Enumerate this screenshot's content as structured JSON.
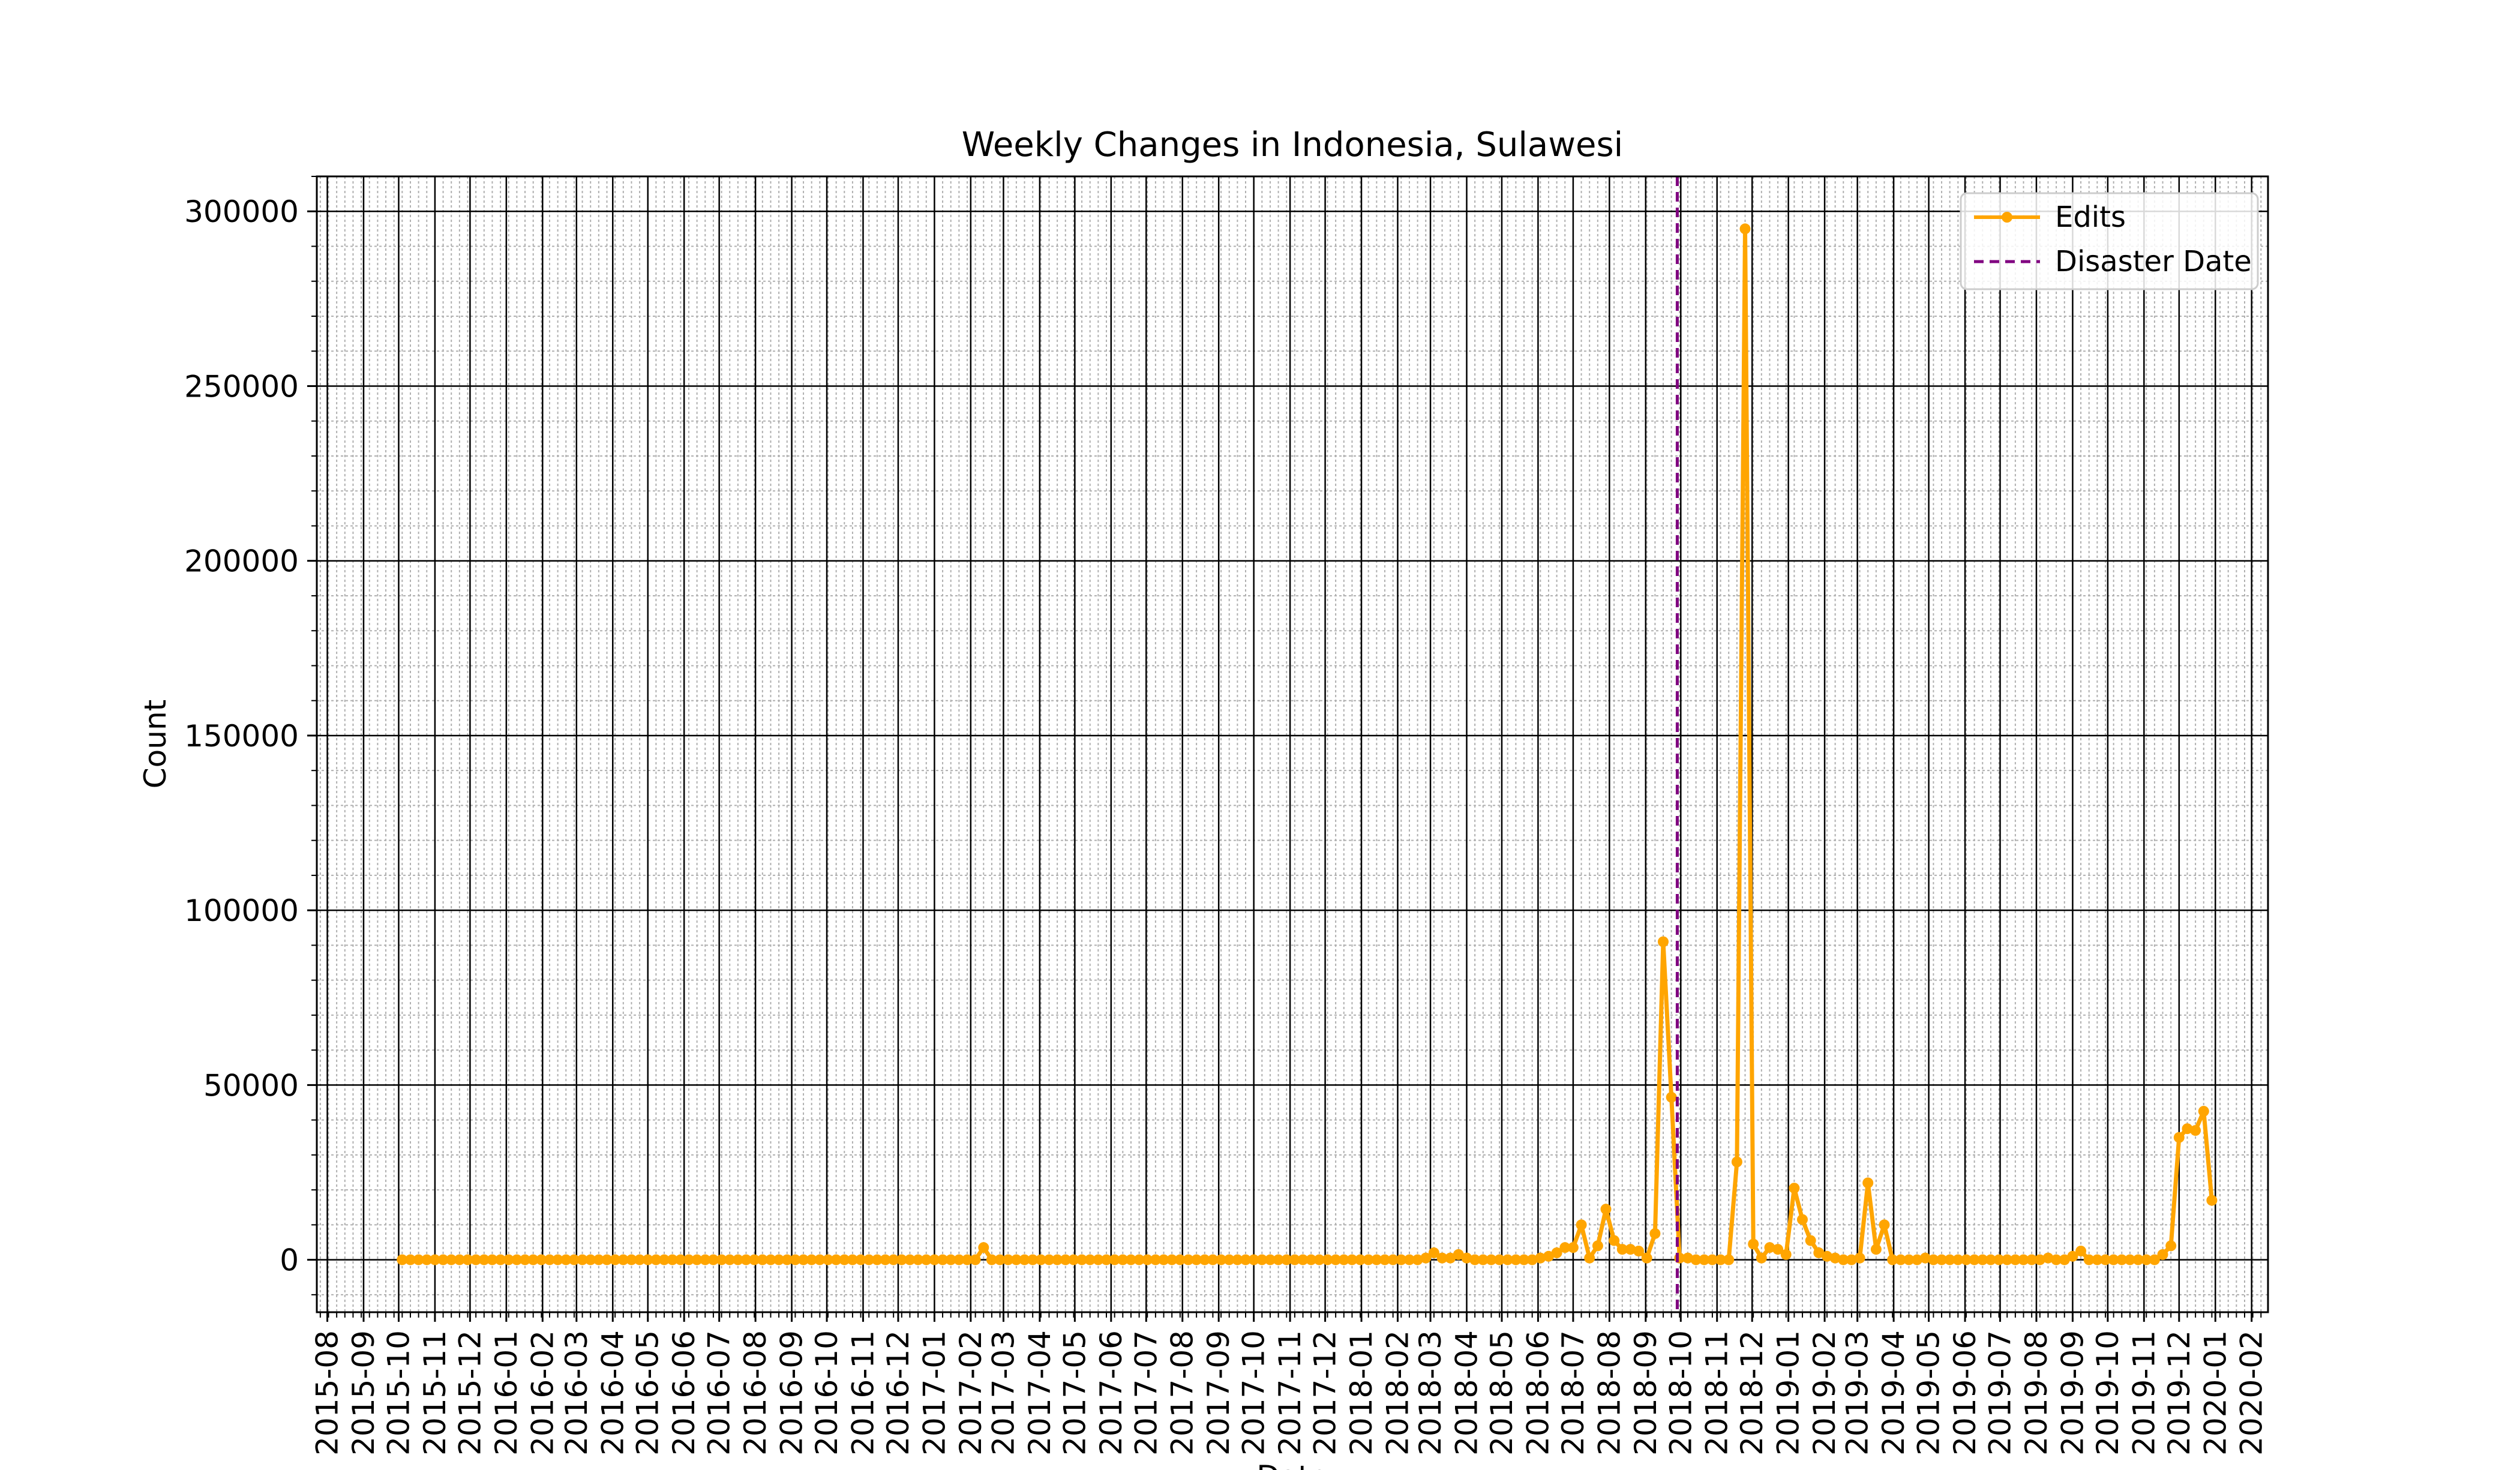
{
  "chart_data": {
    "type": "line",
    "title": "Weekly Changes in Indonesia, Sulawesi",
    "xlabel": "Date",
    "ylabel": "Count",
    "xlim": [
      "2015-07-23",
      "2020-02-15"
    ],
    "ylim": [
      -15000,
      310000
    ],
    "x_tick_labels": [
      "2015-08",
      "2015-09",
      "2015-10",
      "2015-11",
      "2015-12",
      "2016-01",
      "2016-02",
      "2016-03",
      "2016-04",
      "2016-05",
      "2016-06",
      "2016-07",
      "2016-08",
      "2016-09",
      "2016-10",
      "2016-11",
      "2016-12",
      "2017-01",
      "2017-02",
      "2017-03",
      "2017-04",
      "2017-05",
      "2017-06",
      "2017-07",
      "2017-08",
      "2017-09",
      "2017-10",
      "2017-11",
      "2017-12",
      "2018-01",
      "2018-02",
      "2018-03",
      "2018-04",
      "2018-05",
      "2018-06",
      "2018-07",
      "2018-08",
      "2018-09",
      "2018-10",
      "2018-11",
      "2018-12",
      "2019-01",
      "2019-02",
      "2019-03",
      "2019-04",
      "2019-05",
      "2019-06",
      "2019-07",
      "2019-08",
      "2019-09",
      "2019-10",
      "2019-11",
      "2019-12",
      "2020-01",
      "2020-02"
    ],
    "y_ticks": [
      0,
      50000,
      100000,
      150000,
      200000,
      250000,
      300000
    ],
    "y_tick_labels": [
      "0",
      "50000",
      "100000",
      "150000",
      "200000",
      "250000",
      "300000"
    ],
    "grid": {
      "major": true,
      "minor": true
    },
    "legend_position": "top-right",
    "legend": [
      "Edits",
      "Disaster Date"
    ],
    "disaster_date": "2018-09-28",
    "colors": {
      "edits": "#ffa500",
      "disaster": "#800080",
      "grid_major": "#000000",
      "grid_minor": "#b0b0b0"
    },
    "series": [
      {
        "name": "Edits",
        "color": "#ffa500",
        "segments": [
          {
            "start": "2015-10-04",
            "step_days": 7,
            "values": [
              0,
              0,
              0,
              0,
              0,
              0,
              0,
              0,
              0,
              0,
              0,
              0,
              0,
              0,
              0,
              0,
              0,
              0,
              0,
              0,
              0,
              0,
              0,
              0,
              0,
              0,
              0,
              0,
              0,
              0,
              0,
              0,
              0,
              0,
              0,
              0,
              0,
              0,
              0,
              0,
              0,
              0,
              0,
              0,
              0,
              0,
              0,
              0,
              0,
              0,
              0,
              0,
              0,
              0,
              0,
              0,
              0,
              0,
              0,
              0,
              0,
              0,
              0,
              0,
              0,
              0,
              0,
              0,
              0,
              0,
              0,
              3500,
              0,
              0,
              0,
              0,
              0,
              0,
              0,
              0,
              0,
              0,
              0,
              0,
              0,
              0,
              0,
              0,
              0,
              0,
              0,
              0,
              0,
              0,
              0,
              0,
              0,
              0,
              0,
              0,
              0,
              0,
              0,
              0,
              0,
              0,
              0,
              0,
              0,
              0,
              0,
              0,
              0,
              0,
              0,
              0,
              0,
              0,
              0,
              0,
              0,
              0,
              0,
              0,
              0,
              500,
              2000,
              500,
              500,
              1500,
              500,
              0,
              0,
              0,
              0,
              0,
              0,
              0,
              0,
              500,
              1000,
              2000,
              3500,
              3500,
              10000,
              500,
              4000,
              14500,
              5500,
              3000,
              3000,
              2500,
              500,
              7500,
              91000,
              46500,
              500,
              500,
              0,
              0,
              0,
              0,
              0,
              28000,
              295000,
              4500,
              500,
              3500,
              3000,
              1500,
              20500,
              11500,
              5500,
              2000,
              1000,
              500,
              0,
              0,
              500,
              22000,
              3000,
              10000,
              0,
              0,
              0,
              0,
              500,
              0,
              0,
              0,
              0,
              0,
              0,
              0,
              0,
              0,
              0,
              0,
              0,
              0,
              0,
              500,
              0,
              0,
              1000,
              2500,
              0,
              0,
              0,
              0,
              0,
              0,
              0,
              0,
              0,
              1500,
              4000,
              35000,
              37500,
              37000,
              42500,
              17000
            ]
          }
        ]
      }
    ]
  }
}
